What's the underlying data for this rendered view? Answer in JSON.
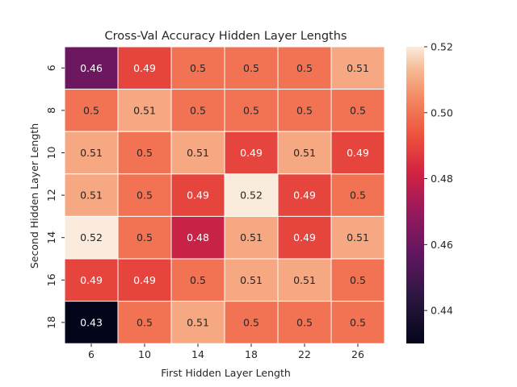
{
  "chart_data": {
    "type": "heatmap",
    "title": "Cross-Val Accuracy Hidden Layer Lengths",
    "xlabel": "First Hidden Layer Length",
    "ylabel": "Second Hidden Layer Length",
    "x_categories": [
      "6",
      "10",
      "14",
      "18",
      "22",
      "26"
    ],
    "y_categories": [
      "6",
      "8",
      "10",
      "12",
      "14",
      "16",
      "18"
    ],
    "values": [
      [
        0.46,
        0.49,
        0.5,
        0.5,
        0.5,
        0.51
      ],
      [
        0.5,
        0.51,
        0.5,
        0.5,
        0.5,
        0.5
      ],
      [
        0.51,
        0.5,
        0.51,
        0.49,
        0.51,
        0.49
      ],
      [
        0.51,
        0.5,
        0.49,
        0.52,
        0.49,
        0.5
      ],
      [
        0.52,
        0.5,
        0.48,
        0.51,
        0.49,
        0.51
      ],
      [
        0.49,
        0.49,
        0.5,
        0.51,
        0.51,
        0.5
      ],
      [
        0.43,
        0.5,
        0.51,
        0.5,
        0.5,
        0.5
      ]
    ],
    "colorbar": {
      "range": [
        0.43,
        0.52
      ],
      "ticks": [
        0.44,
        0.46,
        0.48,
        0.5,
        0.52
      ],
      "tick_labels": [
        "0.44",
        "0.46",
        "0.48",
        "0.50",
        "0.52"
      ],
      "colormap": "rocket"
    },
    "grid": false
  }
}
